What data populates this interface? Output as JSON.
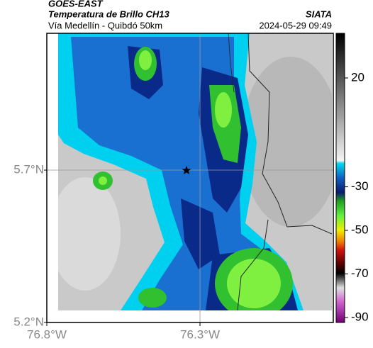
{
  "header": {
    "source": "GOES-EAST",
    "title": "Temperatura de Brillo CH13",
    "subtitle": "Vía Medellín - Quibdó 50km",
    "agency": "SIATA",
    "timestamp": "2024-05-29 09:49"
  },
  "map": {
    "lonlim": [
      -76.8,
      -75.865
    ],
    "latlim": [
      5.2,
      6.149
    ],
    "xticks": [
      {
        "value": -76.8,
        "label": "76.8°W"
      },
      {
        "value": -76.3,
        "label": "76.3°W"
      }
    ],
    "yticks": [
      {
        "value": 5.2,
        "label": "5.2°N"
      },
      {
        "value": 5.7,
        "label": "5.7°N"
      }
    ],
    "grid": true
  },
  "colorbar": {
    "range": [
      40.5,
      -92.3
    ],
    "ticks": [
      20,
      -30,
      -50,
      -70,
      -90
    ]
  }
}
